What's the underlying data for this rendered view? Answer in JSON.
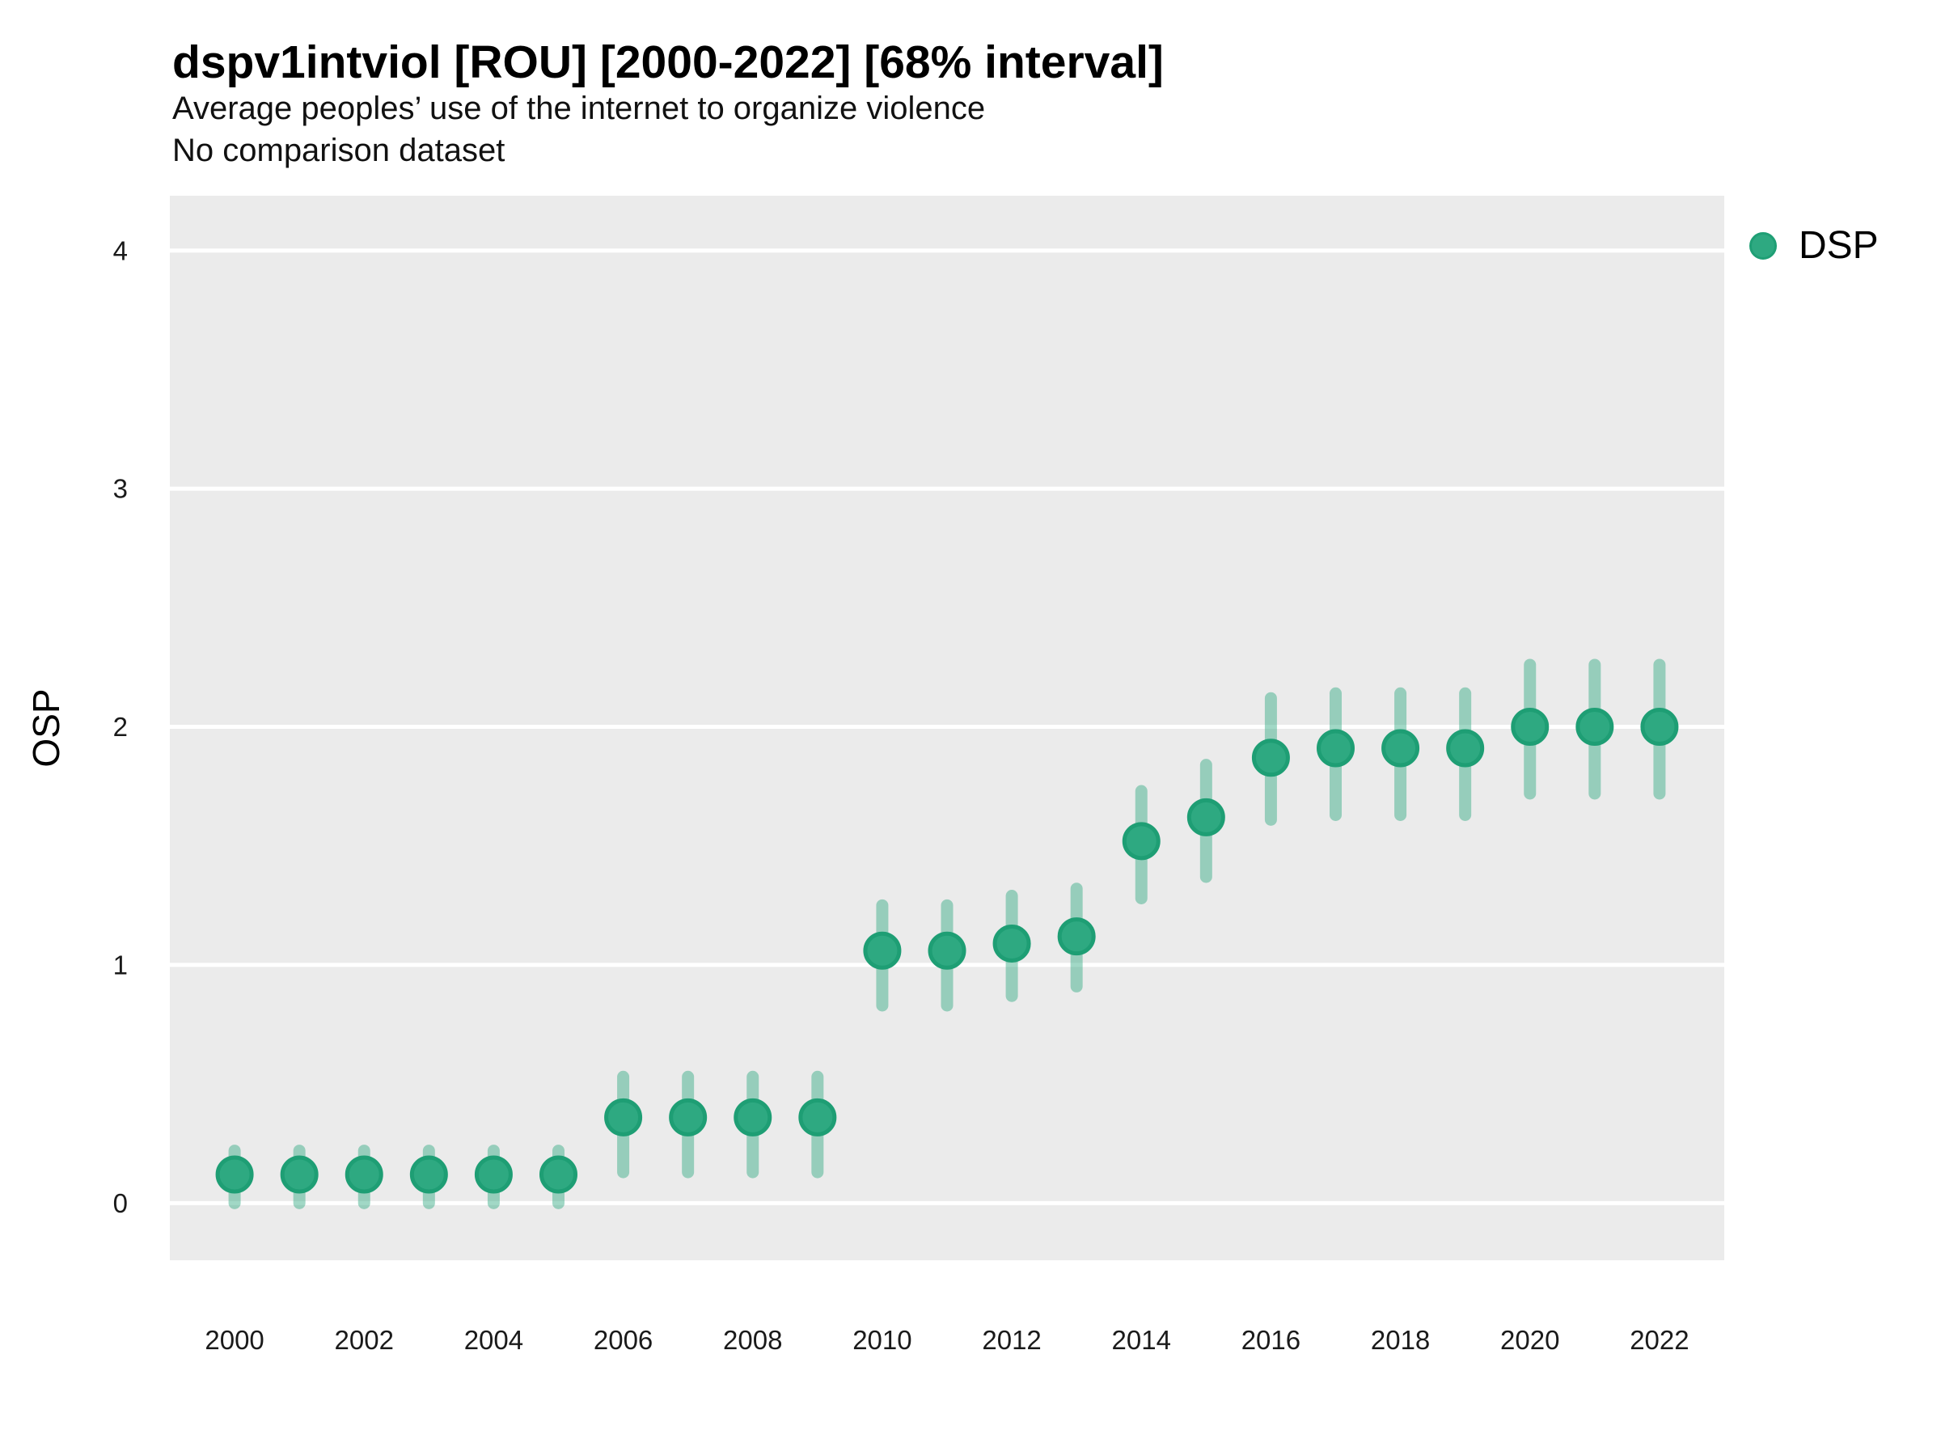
{
  "header": {
    "title": "dspv1intviol [ROU] [2000-2022] [68% interval]",
    "subtitle": "Average peoples’ use of the internet to organize violence",
    "note": "No comparison dataset"
  },
  "legend": {
    "position": "right-top",
    "items": [
      {
        "label": "DSP",
        "color": "#2ea981"
      }
    ]
  },
  "colors": {
    "page_bg": "#ffffff",
    "panel_bg": "#ebebeb",
    "gridline": "#ffffff",
    "marker_fill": "#2ea981",
    "marker_edge": "#1e9e74",
    "interval_bar": "rgba(46,169,129,0.45)",
    "tick_text": "#1a1a1a"
  },
  "chart_data": {
    "type": "scatter",
    "title": "dspv1intviol [ROU] [2000-2022] [68% interval]",
    "subtitle": "Average peoples’ use of the internet to organize violence",
    "note": "No comparison dataset",
    "xlabel": "",
    "ylabel": "OSP",
    "interval": "68%",
    "grid": "horizontal-major",
    "legend_position": "right-top",
    "xlim": [
      1999,
      2023
    ],
    "ylim": [
      -0.24,
      4.23
    ],
    "x_ticks": [
      2000,
      2002,
      2004,
      2006,
      2008,
      2010,
      2012,
      2014,
      2016,
      2018,
      2020,
      2022
    ],
    "y_ticks": [
      0,
      1,
      2,
      3,
      4
    ],
    "series": [
      {
        "name": "DSP",
        "marker_color": "#2ea981",
        "marker_edge_color": "#1e9e74",
        "interval_color": "rgba(46,169,129,0.45)",
        "x": [
          2000,
          2001,
          2002,
          2003,
          2004,
          2005,
          2006,
          2007,
          2008,
          2009,
          2010,
          2011,
          2012,
          2013,
          2014,
          2015,
          2016,
          2017,
          2018,
          2019,
          2020,
          2021,
          2022
        ],
        "values": [
          0.12,
          0.12,
          0.12,
          0.12,
          0.12,
          0.12,
          0.36,
          0.36,
          0.36,
          0.36,
          1.06,
          1.06,
          1.09,
          1.12,
          1.52,
          1.62,
          1.87,
          1.91,
          1.91,
          1.91,
          2.0,
          2.0,
          2.0
        ],
        "low": [
          0.0,
          0.0,
          0.0,
          0.0,
          0.0,
          0.0,
          0.13,
          0.13,
          0.13,
          0.13,
          0.83,
          0.83,
          0.87,
          0.91,
          1.28,
          1.37,
          1.61,
          1.63,
          1.63,
          1.63,
          1.72,
          1.72,
          1.72
        ],
        "high": [
          0.22,
          0.22,
          0.22,
          0.22,
          0.22,
          0.22,
          0.53,
          0.53,
          0.53,
          0.53,
          1.25,
          1.25,
          1.29,
          1.32,
          1.73,
          1.84,
          2.12,
          2.14,
          2.14,
          2.14,
          2.26,
          2.26,
          2.26
        ]
      }
    ]
  }
}
